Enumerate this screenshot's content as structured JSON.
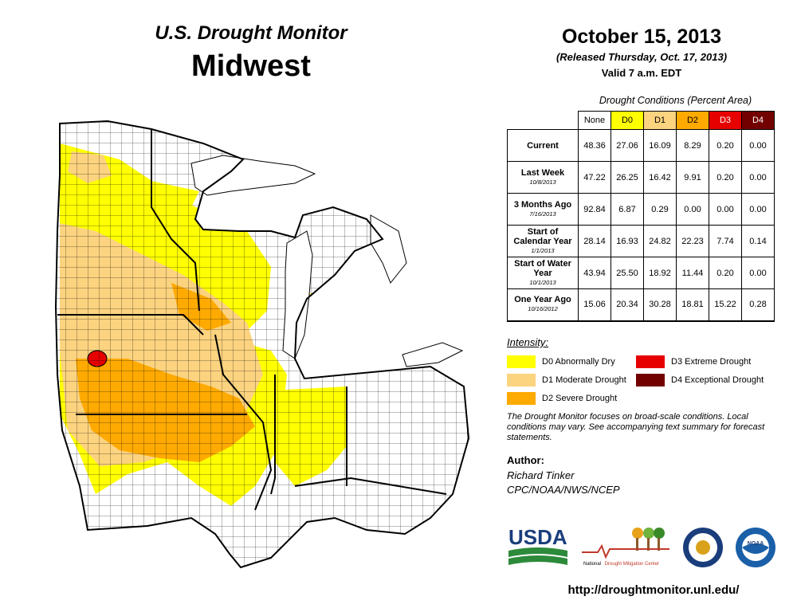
{
  "header": {
    "title": "U.S. Drought Monitor",
    "region": "Midwest",
    "date": "October 15, 2013",
    "released": "(Released Thursday, Oct. 17, 2013)",
    "valid": "Valid 7 a.m. EDT"
  },
  "table": {
    "caption": "Drought Conditions (Percent Area)",
    "columns": [
      {
        "label": "None",
        "color": "#ffffff",
        "text": "#000000"
      },
      {
        "label": "D0",
        "color": "#ffff00",
        "text": "#000000"
      },
      {
        "label": "D1",
        "color": "#fcd37f",
        "text": "#000000"
      },
      {
        "label": "D2",
        "color": "#ffaa00",
        "text": "#000000"
      },
      {
        "label": "D3",
        "color": "#e60000",
        "text": "#ffffff"
      },
      {
        "label": "D4",
        "color": "#730000",
        "text": "#ffffff"
      }
    ],
    "rows": [
      {
        "label": "Current",
        "sub": "",
        "values": [
          "48.36",
          "27.06",
          "16.09",
          "8.29",
          "0.20",
          "0.00"
        ]
      },
      {
        "label": "Last Week",
        "sub": "10/8/2013",
        "values": [
          "47.22",
          "26.25",
          "16.42",
          "9.91",
          "0.20",
          "0.00"
        ]
      },
      {
        "label": "3 Months Ago",
        "sub": "7/16/2013",
        "values": [
          "92.84",
          "6.87",
          "0.29",
          "0.00",
          "0.00",
          "0.00"
        ]
      },
      {
        "label": "Start of Calendar Year",
        "sub": "1/1/2013",
        "values": [
          "28.14",
          "16.93",
          "24.82",
          "22.23",
          "7.74",
          "0.14"
        ]
      },
      {
        "label": "Start of Water Year",
        "sub": "10/1/2013",
        "values": [
          "43.94",
          "25.50",
          "18.92",
          "11.44",
          "0.20",
          "0.00"
        ]
      },
      {
        "label": "One Year Ago",
        "sub": "10/16/2012",
        "values": [
          "15.06",
          "20.34",
          "30.28",
          "18.81",
          "15.22",
          "0.28"
        ]
      }
    ]
  },
  "legend": {
    "heading": "Intensity:",
    "items": [
      {
        "label": "D0 Abnormally Dry",
        "color": "#ffff00"
      },
      {
        "label": "D1 Moderate Drought",
        "color": "#fcd37f"
      },
      {
        "label": "D2 Severe Drought",
        "color": "#ffaa00"
      },
      {
        "label": "D3 Extreme Drought",
        "color": "#e60000"
      },
      {
        "label": "D4 Exceptional Drought",
        "color": "#730000"
      }
    ]
  },
  "note": "The Drought Monitor focuses on broad-scale conditions. Local conditions may vary. See accompanying text summary for forecast statements.",
  "author": {
    "heading": "Author:",
    "name": "Richard Tinker",
    "org": "CPC/NOAA/NWS/NCEP"
  },
  "logos": {
    "usda": "USDA",
    "ndmc_1": "National",
    "ndmc_2": "Drought Mitigation Center",
    "noaa": "NOAA"
  },
  "url": "http://droughtmonitor.unl.edu/"
}
